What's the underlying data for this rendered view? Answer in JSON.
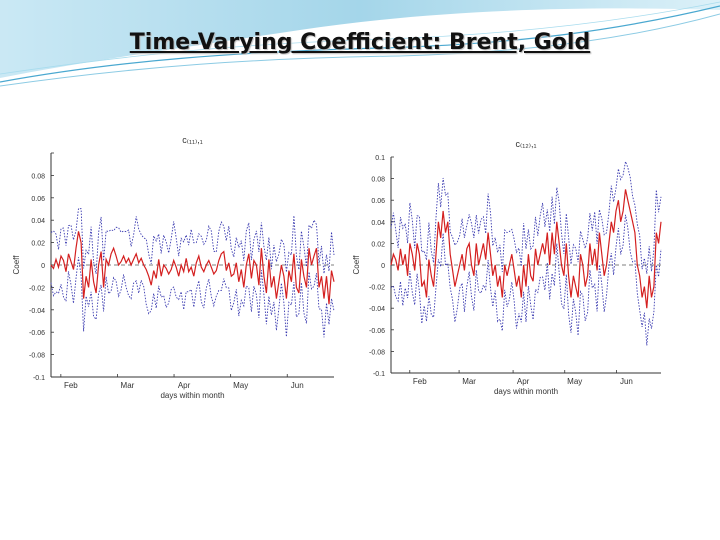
{
  "slide": {
    "title": "Time-Varying Coefficient: Brent, Gold"
  },
  "colors": {
    "estimate": "#d42020",
    "band": "#3a3ab0",
    "zero_line": "#555555",
    "title_bar_top": "#5ab4d8",
    "title_bar_bottom": "#a9dbee"
  },
  "chart_data": [
    {
      "type": "line",
      "title": "c₍₁₁₎,₁",
      "xlabel": "days within month",
      "ylabel": "Coeff",
      "ylim": [
        -0.1,
        0.1
      ],
      "yticks": [
        0.1,
        0.08,
        0.06,
        0.04,
        0.02,
        0,
        -0.02,
        -0.04,
        -0.06,
        -0.08,
        -0.1
      ],
      "ytick_labels": [
        "",
        "0.08",
        "0.06",
        "0.04",
        "0.02",
        "0",
        "-0.02",
        "-0.04",
        "-0.06",
        "-0.08",
        "-0.1"
      ],
      "xlim": [
        0,
        115
      ],
      "xticks": [
        4,
        27,
        50,
        73,
        96
      ],
      "xtick_labels": [
        "Feb",
        "Mar",
        "Apr",
        "May",
        "Jun"
      ],
      "grid": false,
      "y": [
        0.0,
        -0.003,
        0.005,
        -0.002,
        0.008,
        0.004,
        -0.006,
        0.01,
        0.003,
        -0.004,
        0.015,
        0.03,
        0.02,
        -0.03,
        -0.01,
        -0.02,
        0.005,
        -0.015,
        -0.025,
        0.0,
        0.012,
        -0.02,
        0.005,
        0.0,
        0.01,
        0.015,
        0.008,
        0.0,
        0.003,
        0.008,
        0.002,
        0.006,
        0.0,
        0.005,
        0.01,
        0.002,
        0.006,
        0.0,
        -0.004,
        -0.01,
        -0.018,
        -0.005,
        -0.012,
        0.005,
        -0.01,
        0.0,
        -0.003,
        -0.008,
        -0.004,
        0.004,
        -0.002,
        -0.01,
        0.0,
        -0.006,
        0.006,
        -0.006,
        -0.002,
        -0.01,
        0.002,
        0.008,
        -0.002,
        -0.006,
        0.0,
        0.004,
        -0.002,
        -0.008,
        -0.005,
        0.004,
        0.01,
        0.012,
        -0.005,
        0.002,
        -0.01,
        -0.008,
        0.002,
        -0.015,
        -0.004,
        -0.02,
        0.0,
        0.01,
        -0.012,
        0.004,
        0.0,
        -0.018,
        0.015,
        -0.01,
        -0.025,
        0.005,
        -0.02,
        -0.01,
        -0.03,
        -0.015,
        0.0,
        -0.01,
        -0.03,
        -0.005,
        -0.015,
        0.01,
        -0.02,
        -0.025,
        0.005,
        -0.01,
        -0.02,
        0.015,
        0.0,
        0.008,
        0.015,
        -0.02,
        -0.01,
        -0.03,
        -0.01,
        -0.035,
        -0.005,
        -0.015
      ],
      "band_halfwidth": 0.025
    },
    {
      "type": "line",
      "title": "c₍₁₂₎,₁",
      "xlabel": "days within month",
      "ylabel": "Coeff",
      "ylim": [
        -0.1,
        0.1
      ],
      "yticks": [
        0.1,
        0.08,
        0.06,
        0.04,
        0.02,
        0,
        -0.02,
        -0.04,
        -0.06,
        -0.08,
        -0.1
      ],
      "ytick_labels": [
        "0.1",
        "0.08",
        "0.06",
        "0.04",
        "0.02",
        "0",
        "-0.02",
        "-0.04",
        "-0.06",
        "-0.08",
        "-0.1"
      ],
      "xlim": [
        0,
        115
      ],
      "xticks": [
        8,
        29,
        52,
        74,
        96
      ],
      "xtick_labels": [
        "Feb",
        "Mar",
        "Apr",
        "May",
        "Jun"
      ],
      "grid": false,
      "y": [
        0.0,
        0.01,
        0.005,
        -0.005,
        0.015,
        0.0,
        0.01,
        -0.01,
        0.02,
        0.01,
        -0.005,
        0.02,
        0.01,
        -0.02,
        -0.015,
        -0.03,
        0.005,
        -0.01,
        -0.02,
        0.01,
        0.04,
        0.025,
        0.05,
        0.03,
        0.04,
        0.01,
        -0.005,
        -0.02,
        -0.01,
        0.0,
        0.01,
        -0.005,
        0.015,
        0.02,
        0.0,
        -0.01,
        0.02,
        0.0,
        0.01,
        0.02,
        0.005,
        0.03,
        0.01,
        -0.01,
        0.0,
        -0.02,
        -0.01,
        -0.03,
        0.0,
        -0.01,
        0.0,
        0.01,
        -0.005,
        -0.02,
        -0.01,
        -0.03,
        0.0,
        -0.02,
        0.01,
        -0.01,
        -0.015,
        0.015,
        0.0,
        0.01,
        0.02,
        0.01,
        0.03,
        0.0,
        0.03,
        0.01,
        0.04,
        0.02,
        0.0,
        -0.01,
        0.02,
        -0.01,
        -0.03,
        -0.01,
        -0.02,
        -0.03,
        0.01,
        0.0,
        -0.02,
        -0.01,
        0.02,
        0.0,
        0.015,
        -0.005,
        0.03,
        0.01,
        -0.01,
        0.0,
        0.02,
        0.04,
        0.03,
        0.05,
        0.06,
        0.04,
        0.05,
        0.07,
        0.06,
        0.05,
        0.04,
        0.03,
        0.0,
        -0.01,
        -0.03,
        -0.02,
        -0.04,
        -0.01,
        -0.03,
        -0.02,
        0.03,
        0.02,
        0.04
      ],
      "band_halfwidth": 0.03
    }
  ]
}
